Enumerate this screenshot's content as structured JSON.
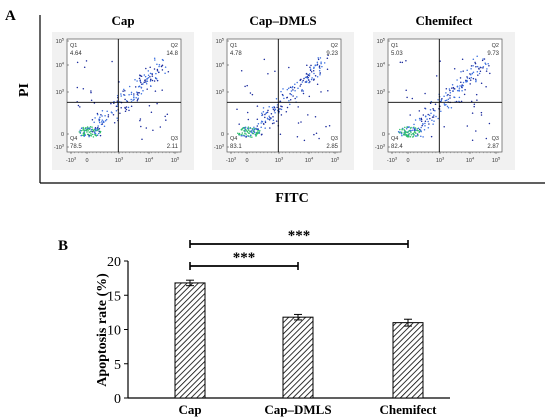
{
  "flow": {
    "label": "A",
    "ylabel": "PI",
    "xlabel": "FITC",
    "y_ticks": [
      "10",
      "10",
      "10",
      "0",
      "-10"
    ],
    "y_tick_exps": [
      "5",
      "4",
      "3",
      "",
      "3"
    ],
    "x_ticks": [
      "-10",
      "0",
      "10",
      "10",
      "10"
    ],
    "x_tick_exps": [
      "3",
      "",
      "3",
      "4",
      "5"
    ],
    "panels": [
      {
        "title": "Cap",
        "q1_label": "Q1",
        "q1": "4.64",
        "q2_label": "Q2",
        "q2": "14.8",
        "q3_label": "Q3",
        "q3": "2.11",
        "q4_label": "Q4",
        "q4": "78.5"
      },
      {
        "title": "Cap–DMLS",
        "q1_label": "Q1",
        "q1": "4.78",
        "q2_label": "Q2",
        "q2": "9.23",
        "q3_label": "Q3",
        "q3": "2.85",
        "q4_label": "Q4",
        "q4": "83.1"
      },
      {
        "title": "Chemifect",
        "q1_label": "Q1",
        "q1": "5.03",
        "q2_label": "Q2",
        "q2": "9.73",
        "q3_label": "Q3",
        "q3": "2.87",
        "q4_label": "Q4",
        "q4": "82.4"
      }
    ],
    "colors": {
      "dense": "#2dbf6a",
      "mid": "#3a6fe0",
      "sparse": "#1a2a9c"
    }
  },
  "chart_data": {
    "type": "bar",
    "panel_label": "B",
    "categories": [
      "Cap",
      "Cap–DMLS",
      "Chemifect"
    ],
    "values": [
      16.8,
      11.8,
      11.0
    ],
    "errors": [
      0.4,
      0.4,
      0.5
    ],
    "ylabel": "Apoptosis rate (%)",
    "xlabel": "",
    "ylim": [
      0,
      20
    ],
    "yticks": [
      0,
      5,
      10,
      15,
      20
    ],
    "bar_fill": "hatched",
    "significance": [
      {
        "from": 0,
        "to": 1,
        "label": "***"
      },
      {
        "from": 0,
        "to": 2,
        "label": "***"
      }
    ]
  }
}
